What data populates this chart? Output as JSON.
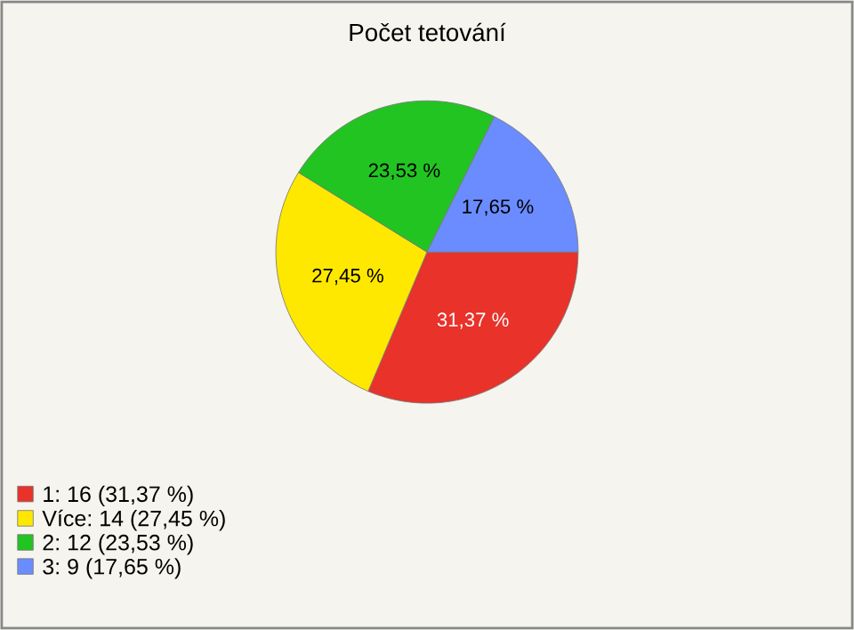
{
  "chart_data": {
    "type": "pie",
    "title": "Počet tetování",
    "categories": [
      "1: 16 (31,37 %)",
      "Více: 14 (27,45 %)",
      "2: 12 (23,53 %)",
      "3: 9 (17,65 %)"
    ],
    "values": [
      31.37,
      27.45,
      23.53,
      17.65
    ],
    "value_labels": [
      "31,37 %",
      "27,45 %",
      "23,53 %",
      "17,65 %"
    ],
    "colors": [
      "#e8322a",
      "#ffe800",
      "#22c422",
      "#6a8cff"
    ],
    "legend": "bottom left"
  }
}
